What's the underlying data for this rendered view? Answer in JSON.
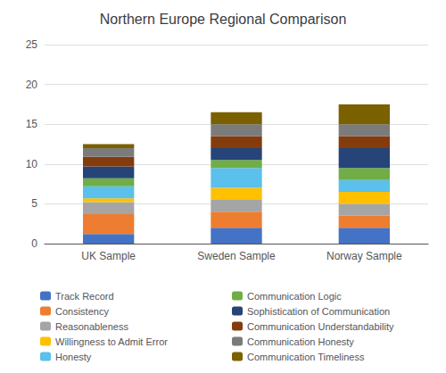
{
  "chart_data": {
    "type": "bar",
    "title": "Northern Europe Regional Comparison",
    "stacked": true,
    "categories": [
      "UK Sample",
      "Sweden Sample",
      "Norway Sample"
    ],
    "series": [
      {
        "name": "Track Record",
        "color": "#4472C4",
        "values": [
          1.2,
          2.0,
          2.0
        ]
      },
      {
        "name": "Consistency",
        "color": "#ED7D31",
        "values": [
          2.5,
          2.0,
          1.5
        ]
      },
      {
        "name": "Reasonableness",
        "color": "#A5A5A5",
        "values": [
          1.5,
          1.5,
          1.5
        ]
      },
      {
        "name": "Willingness to Admit Error",
        "color": "#FFC000",
        "values": [
          0.5,
          1.5,
          1.5
        ]
      },
      {
        "name": "Honesty",
        "color": "#5BC0EB",
        "values": [
          1.5,
          2.5,
          1.5
        ]
      },
      {
        "name": "Communication Logic",
        "color": "#70AD47",
        "values": [
          1.0,
          1.0,
          1.5
        ]
      },
      {
        "name": "Sophistication of Communication",
        "color": "#264478",
        "values": [
          1.5,
          1.5,
          2.5
        ]
      },
      {
        "name": "Communication Understandability",
        "color": "#843C0C",
        "values": [
          1.2,
          1.5,
          1.5
        ]
      },
      {
        "name": "Communication Honesty",
        "color": "#7B7B7B",
        "values": [
          1.1,
          1.5,
          1.5
        ]
      },
      {
        "name": "Communication Timeliness",
        "color": "#7B6000",
        "values": [
          0.5,
          1.5,
          2.5
        ]
      }
    ],
    "ylim": [
      0,
      25
    ],
    "yticks": [
      0,
      5,
      10,
      15,
      20,
      25
    ],
    "grid": true,
    "legend": "bottom"
  }
}
